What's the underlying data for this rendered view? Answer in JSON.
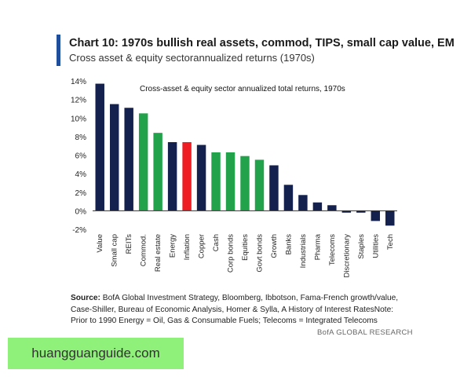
{
  "header": {
    "title": "Chart 10: 1970s bullish real assets, commod, TIPS, small cap value, EM",
    "subtitle": "Cross asset & equity sectorannualized returns (1970s)",
    "accent_color": "#1f4e9c"
  },
  "chart_data": {
    "type": "bar",
    "title": "Cross-asset & equity sector annualized total returns, 1970s",
    "xlabel": "",
    "ylabel": "",
    "ylim": [
      -2,
      14
    ],
    "y_ticks": [
      "14%",
      "12%",
      "10%",
      "8%",
      "6%",
      "4%",
      "2%",
      "0%",
      "-2%"
    ],
    "y_tick_values": [
      14,
      12,
      10,
      8,
      6,
      4,
      2,
      0,
      -2
    ],
    "grid": false,
    "categories": [
      "Value",
      "Small cap",
      "REITs",
      "Commod.",
      "Real estate",
      "Energy",
      "Inflation",
      "Copper",
      "Cash",
      "Corp bonds",
      "Equities",
      "Govt bonds",
      "Growth",
      "Banks",
      "Industrials",
      "Pharma",
      "Telecoms",
      "Discretionary",
      "Staples",
      "Utilities",
      "Tech"
    ],
    "values": [
      13.7,
      11.5,
      11.1,
      10.5,
      8.4,
      7.4,
      7.4,
      7.1,
      6.3,
      6.3,
      5.9,
      5.5,
      4.9,
      2.8,
      1.7,
      0.9,
      0.6,
      -0.2,
      -0.2,
      -1.1,
      -1.6
    ],
    "bar_colors": [
      "navy",
      "navy",
      "navy",
      "green",
      "green",
      "navy",
      "red",
      "navy",
      "green",
      "green",
      "green",
      "green",
      "navy",
      "navy",
      "navy",
      "navy",
      "navy",
      "navy",
      "navy",
      "navy",
      "navy"
    ],
    "palette": {
      "navy": "#14214f",
      "green": "#22a24a",
      "red": "#ee1d23"
    }
  },
  "footer": {
    "source_label": "Source:",
    "source_text": " BofA Global Investment Strategy, Bloomberg, Ibbotson,  Fama-French growth/value, Case-Shiller, Bureau of Economic Analysis, Homer & Sylla, A History of Interest RatesNote: Prior to 1990 Energy = Oil, Gas & Consumable Fuels; Telecoms = Integrated Telecoms",
    "credit": "BofA GLOBAL RESEARCH"
  },
  "watermark": {
    "text": "huangguanguide.com",
    "background": "#8ff07a"
  }
}
